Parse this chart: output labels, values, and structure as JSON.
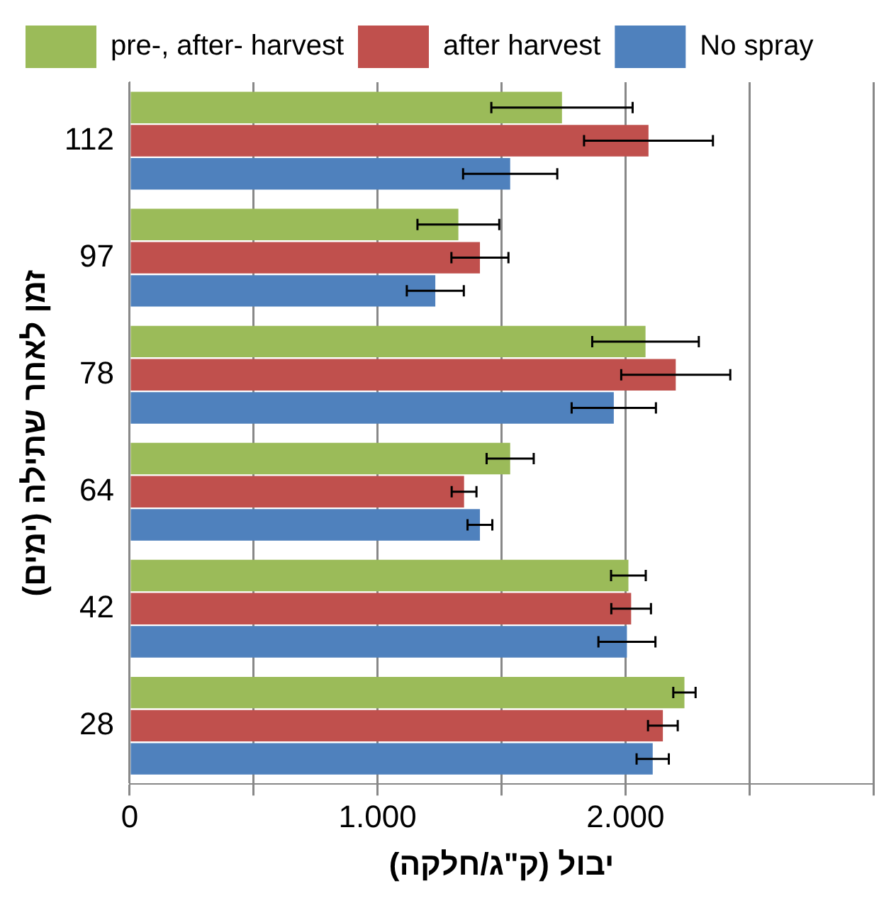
{
  "chart_data": {
    "type": "bar",
    "orientation": "horizontal",
    "categories": [
      "112",
      "97",
      "78",
      "64",
      "42",
      "28"
    ],
    "series": [
      {
        "name": "pre-, after- harvest",
        "color": "#9bbb59",
        "values": [
          1744,
          1326,
          2081,
          1535,
          2012,
          2238
        ],
        "errors": [
          285,
          165,
          215,
          95,
          70,
          45
        ]
      },
      {
        "name": "after harvest",
        "color": "#c0504d",
        "values": [
          2093,
          1413,
          2203,
          1349,
          2023,
          2151
        ],
        "errors": [
          260,
          115,
          220,
          50,
          80,
          60
        ]
      },
      {
        "name": "No spray",
        "color": "#4f81bd",
        "values": [
          1535,
          1233,
          1953,
          1413,
          2006,
          2110
        ],
        "errors": [
          190,
          115,
          170,
          50,
          115,
          65
        ]
      }
    ],
    "xlim": [
      0,
      3000
    ],
    "xticks": [
      0,
      {
        "value": 500,
        "label": null
      },
      {
        "value": 1000,
        "label": "1.000"
      },
      {
        "value": 1500,
        "label": null
      },
      {
        "value": 2000,
        "label": "2.000"
      },
      {
        "value": 2500,
        "label": null
      },
      {
        "value": 3000,
        "label": null
      }
    ],
    "xlabel": "יבול (ק\"ג/חלקה)",
    "ylabel": "זמן לאחר שתילה (ימים)",
    "grid": "x",
    "legend": "top"
  }
}
